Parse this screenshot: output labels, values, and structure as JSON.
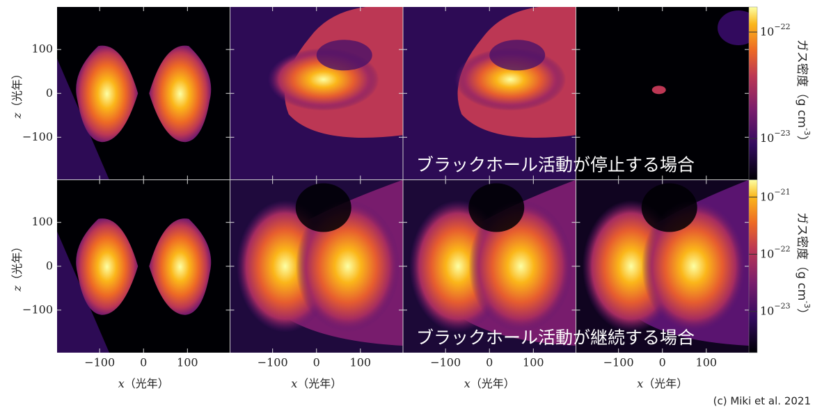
{
  "axes": {
    "xlim": [
      -197,
      197
    ],
    "ylim": [
      -197,
      197
    ],
    "xticks": [
      {
        "value": -100,
        "label": "−100"
      },
      0,
      100
    ],
    "yticks": [
      {
        "value": -100,
        "label": "−100"
      },
      0,
      100
    ],
    "xlabel_var": "x",
    "xlabel": "（光年）",
    "ylabel_var": "z",
    "ylabel": "（光年）"
  },
  "rows": [
    {
      "annotation": "ブラックホール活動が停止する場合",
      "colorbar": {
        "scale": "log",
        "lim": [
          4.1e-24,
          1.72e-22
        ],
        "label": "ガス密度（g cm",
        "label_sup": "-3",
        "label_end": "）",
        "ticks": [
          {
            "value": 1e-23,
            "label": "10",
            "sup": "−23"
          },
          {
            "value": 1e-22,
            "label": "10",
            "sup": "−22"
          }
        ]
      }
    },
    {
      "annotation": "ブラックホール活動が継続する場合",
      "colorbar": {
        "scale": "log",
        "lim": [
          1.9e-24,
          2e-21
        ],
        "label": "ガス密度（g cm",
        "label_sup": "-3",
        "label_end": "）",
        "ticks": [
          {
            "value": 1e-23,
            "label": "10",
            "sup": "−23"
          },
          {
            "value": 1e-22,
            "label": "10",
            "sup": "−22"
          },
          {
            "value": 1e-21,
            "label": "10",
            "sup": "−21"
          }
        ]
      }
    }
  ],
  "credit": "(c) Miki et al. 2021"
}
